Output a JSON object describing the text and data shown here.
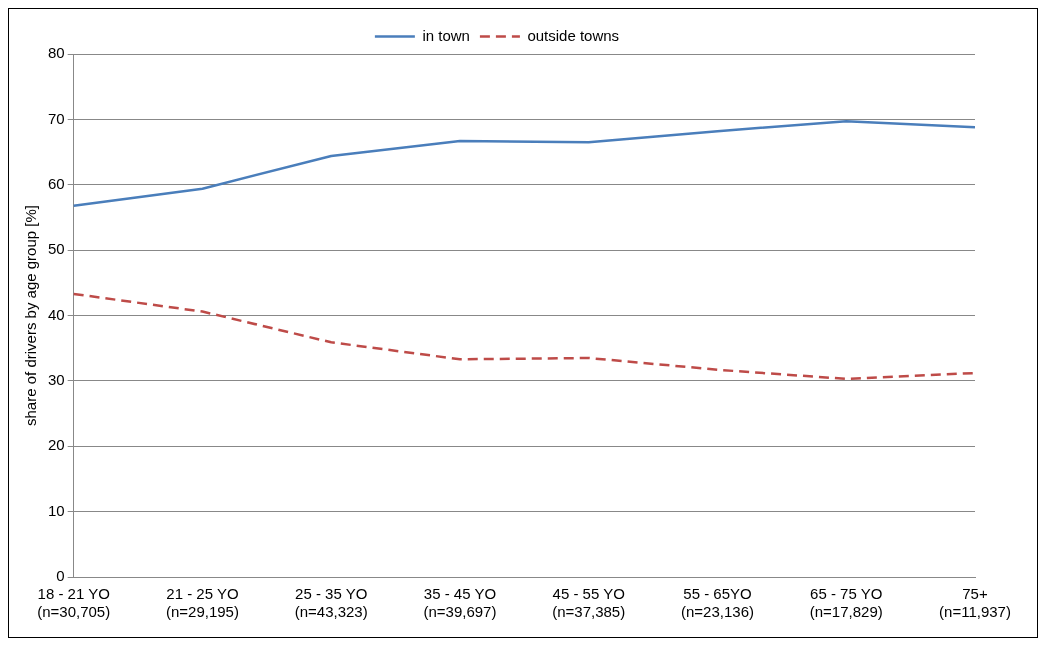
{
  "chart_data": {
    "type": "line",
    "ylabel": "share of drivers by age group [%]",
    "categories": [
      "18 - 21 YO\n(n=30,705)",
      "21 - 25 YO\n(n=29,195)",
      "25 - 35 YO\n(n=43,323)",
      "35 - 45 YO\n(n=39,697)",
      "45 - 55 YO\n(n=37,385)",
      "55 - 65YO\n(n=23,136)",
      "65 - 75 YO\n(n=17,829)",
      "75+\n(n=11,937)"
    ],
    "series": [
      {
        "name": "in town",
        "color": "#4a7ebb",
        "line_style": "solid",
        "values": [
          56.8,
          59.4,
          64.4,
          66.7,
          66.5,
          68.2,
          69.7,
          68.8
        ]
      },
      {
        "name": "outside towns",
        "color": "#be4b48",
        "line_style": "dashed",
        "values": [
          43.3,
          40.6,
          35.9,
          33.3,
          33.5,
          31.7,
          30.3,
          31.2
        ]
      }
    ],
    "ylim": [
      0,
      80
    ],
    "yticks": [
      0,
      10,
      20,
      30,
      40,
      50,
      60,
      70,
      80
    ],
    "grid": "y",
    "legend": "top",
    "marker": "none"
  }
}
